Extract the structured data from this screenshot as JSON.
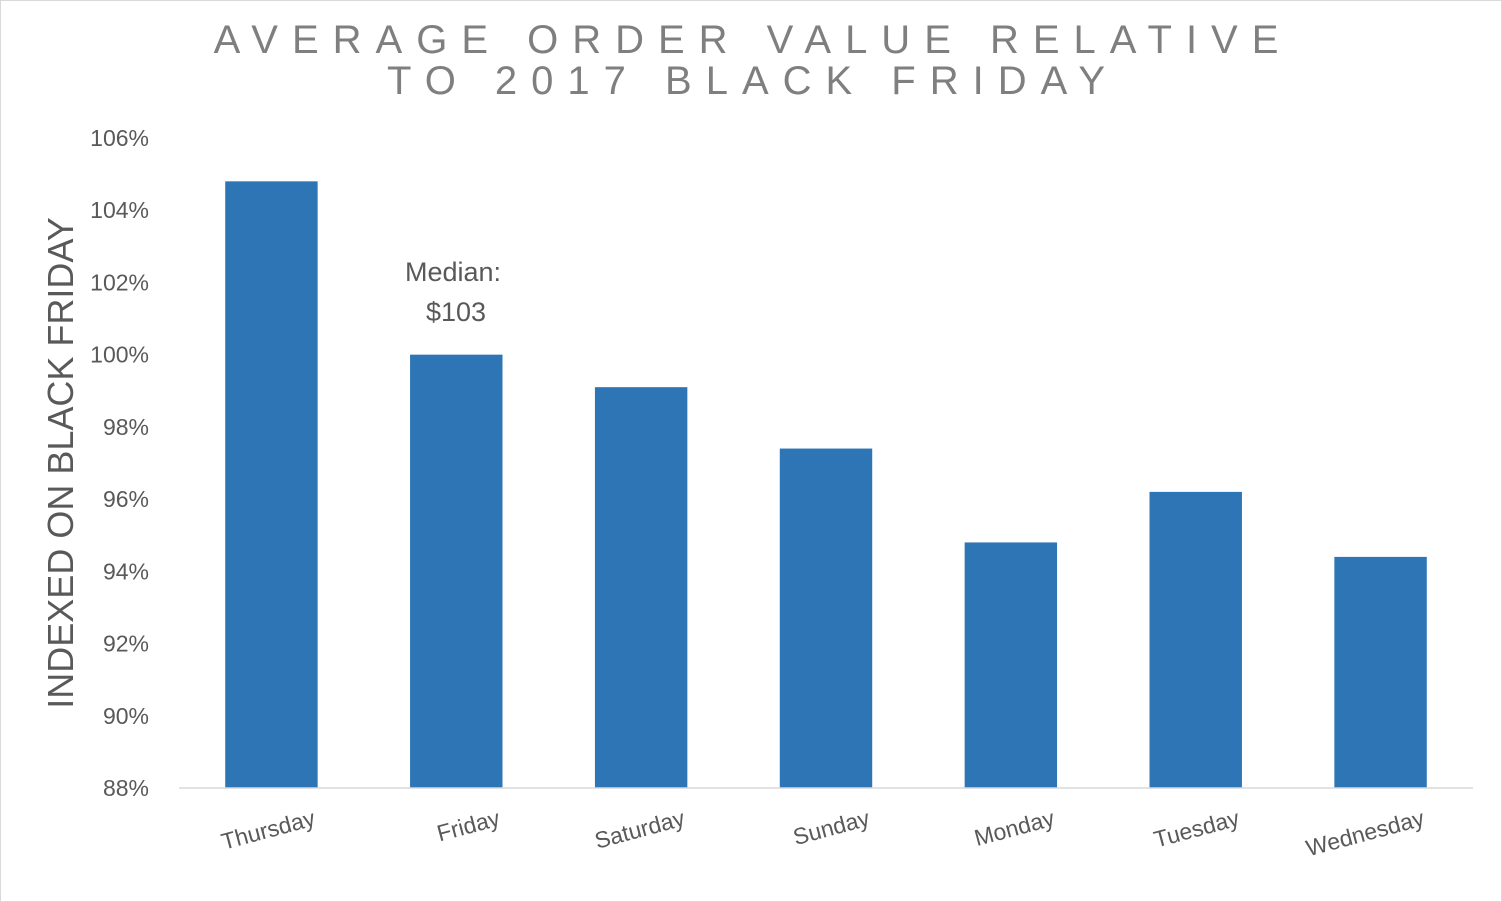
{
  "chart_data": {
    "type": "bar",
    "title_lines": [
      "AVERAGE ORDER VALUE RELATIVE",
      "TO 2017 BLACK FRIDAY"
    ],
    "xlabel": "",
    "ylabel": "INDEXED ON BLACK FRIDAY",
    "categories": [
      "Thursday",
      "Friday",
      "Saturday",
      "Sunday",
      "Monday",
      "Tuesday",
      "Wednesday"
    ],
    "values": [
      104.8,
      100.0,
      99.1,
      97.4,
      94.8,
      96.2,
      94.4
    ],
    "ylim": [
      88,
      106
    ],
    "yticks": [
      88,
      90,
      92,
      94,
      96,
      98,
      100,
      102,
      104,
      106
    ],
    "ytick_labels": [
      "88%",
      "90%",
      "92%",
      "94%",
      "96%",
      "98%",
      "100%",
      "102%",
      "104%",
      "106%"
    ],
    "annotation_lines": [
      "Median:",
      "$103"
    ],
    "bar_color": "#2e75b6",
    "grid": false,
    "legend": "none"
  }
}
